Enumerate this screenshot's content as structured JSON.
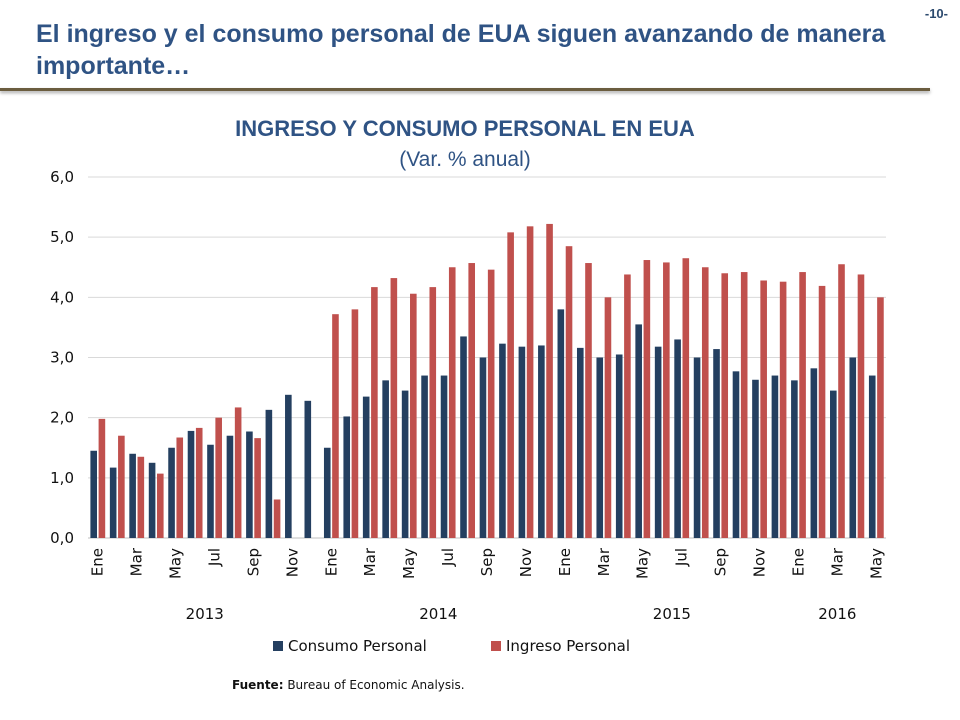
{
  "page_number": "-10-",
  "slide_title": "El ingreso y el consumo personal de EUA siguen avanzando de manera importante…",
  "source": {
    "label": "Fuente:",
    "text": "Bureau of Economic Analysis."
  },
  "colors": {
    "consumo": "#243f60",
    "ingreso": "#c0504d",
    "title": "#2f5384",
    "grid": "#d9d9d9"
  },
  "chart_data": {
    "type": "bar",
    "title": "INGRESO Y CONSUMO PERSONAL EN EUA",
    "subtitle": "(Var. % anual)",
    "xlabel": "",
    "ylabel": "",
    "ylim": [
      0,
      6
    ],
    "yticks": [
      "0,0",
      "1,0",
      "2,0",
      "3,0",
      "4,0",
      "5,0",
      "6,0"
    ],
    "grid": true,
    "legend_position": "bottom",
    "categories": [
      "Ene",
      "Feb",
      "Mar",
      "Abr",
      "May",
      "Jun",
      "Jul",
      "Ago",
      "Sep",
      "Oct",
      "Nov",
      "Dic",
      "Ene",
      "Feb",
      "Mar",
      "Abr",
      "May",
      "Jun",
      "Jul",
      "Ago",
      "Sep",
      "Oct",
      "Nov",
      "Dic",
      "Ene",
      "Feb",
      "Mar",
      "Abr",
      "May",
      "Jun",
      "Jul",
      "Ago",
      "Sep",
      "Oct",
      "Nov",
      "Dic",
      "Ene",
      "Feb",
      "Mar",
      "Abr",
      "May"
    ],
    "shown_tick_labels": [
      "Ene",
      "",
      "Mar",
      "",
      "May",
      "",
      "Jul",
      "",
      "Sep",
      "",
      "Nov",
      "",
      "Ene",
      "",
      "Mar",
      "",
      "May",
      "",
      "Jul",
      "",
      "Sep",
      "",
      "Nov",
      "",
      "Ene",
      "",
      "Mar",
      "",
      "May",
      "",
      "Jul",
      "",
      "Sep",
      "",
      "Nov",
      "",
      "Ene",
      "",
      "Mar",
      "",
      "May"
    ],
    "years": [
      {
        "label": "2013",
        "start": 0,
        "end": 11
      },
      {
        "label": "2014",
        "start": 12,
        "end": 23
      },
      {
        "label": "2015",
        "start": 24,
        "end": 35
      },
      {
        "label": "2016",
        "start": 36,
        "end": 40
      }
    ],
    "series": [
      {
        "name": "Consumo Personal",
        "color": "#243f60",
        "values": [
          1.45,
          1.17,
          1.4,
          1.25,
          1.5,
          1.78,
          1.55,
          1.7,
          1.77,
          2.13,
          2.38,
          2.28,
          1.5,
          2.02,
          2.35,
          2.62,
          2.45,
          2.7,
          2.7,
          3.35,
          3.0,
          3.23,
          3.18,
          3.2,
          3.8,
          3.16,
          3.0,
          3.05,
          3.55,
          3.18,
          3.3,
          3.0,
          3.14,
          2.77,
          2.63,
          2.7,
          2.62,
          2.82,
          2.45,
          3.0,
          2.7
        ]
      },
      {
        "name": "Ingreso Personal",
        "color": "#c0504d",
        "values": [
          1.98,
          1.7,
          1.35,
          1.07,
          1.67,
          1.83,
          2.0,
          2.17,
          1.66,
          0.64,
          null,
          null,
          3.72,
          3.8,
          4.17,
          4.32,
          4.06,
          4.17,
          4.5,
          4.57,
          4.46,
          5.08,
          5.18,
          5.22,
          4.85,
          4.57,
          4.0,
          4.38,
          4.62,
          4.58,
          4.65,
          4.5,
          4.4,
          4.42,
          4.28,
          4.26,
          4.42,
          4.19,
          4.55,
          4.38,
          4.0
        ]
      }
    ]
  }
}
